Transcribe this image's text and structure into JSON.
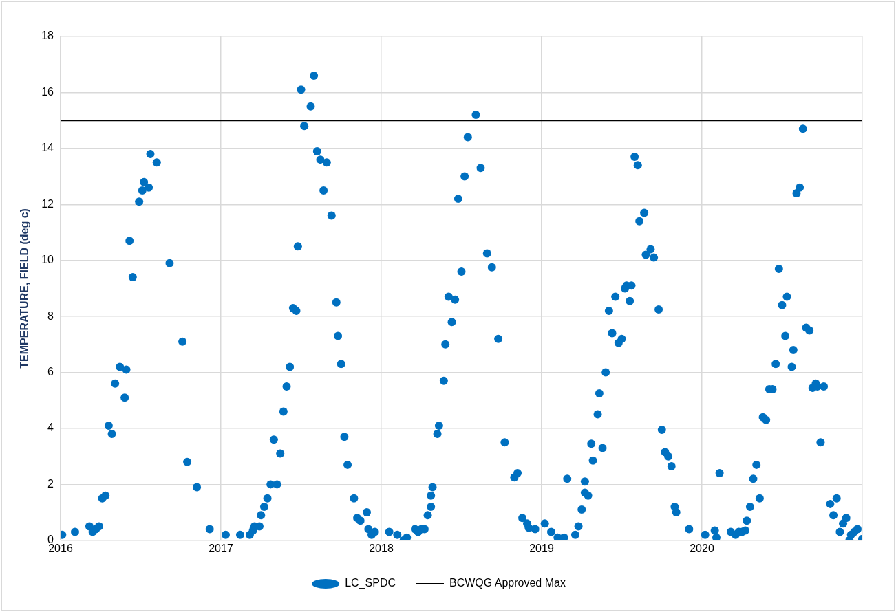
{
  "chart_data": {
    "type": "scatter",
    "ylabel": "TEMPERATURE, FIELD (deg c)",
    "xlim": [
      2016,
      2021
    ],
    "xticks": [
      {
        "value": 2016,
        "label": "2016"
      },
      {
        "value": 2017,
        "label": "2017"
      },
      {
        "value": 2018,
        "label": "2018"
      },
      {
        "value": 2019,
        "label": "2019"
      },
      {
        "value": 2020,
        "label": "2020"
      },
      {
        "value": 2021,
        "label": null
      }
    ],
    "ylim": [
      0,
      18
    ],
    "yticks": [
      0,
      2,
      4,
      6,
      8,
      10,
      12,
      14,
      16,
      18
    ],
    "grid": true,
    "legend": "bottom",
    "series": [
      {
        "name": "LC_SPDC",
        "type": "scatter",
        "marker": "circle",
        "color": "#0070c0",
        "x": [
          2016.01,
          2016.09,
          2016.18,
          2016.2,
          2016.22,
          2016.24,
          2016.26,
          2016.28,
          2016.3,
          2016.32,
          2016.34,
          2016.37,
          2016.4,
          2016.41,
          2016.43,
          2016.45,
          2016.49,
          2016.51,
          2016.52,
          2016.55,
          2016.56,
          2016.6,
          2016.68,
          2016.76,
          2016.79,
          2016.85,
          2016.93,
          2017.03,
          2017.12,
          2017.18,
          2017.2,
          2017.21,
          2017.24,
          2017.25,
          2017.27,
          2017.29,
          2017.31,
          2017.33,
          2017.35,
          2017.37,
          2017.39,
          2017.41,
          2017.43,
          2017.45,
          2017.47,
          2017.48,
          2017.5,
          2017.52,
          2017.56,
          2017.58,
          2017.6,
          2017.62,
          2017.64,
          2017.66,
          2017.69,
          2017.72,
          2017.73,
          2017.75,
          2017.77,
          2017.79,
          2017.83,
          2017.85,
          2017.87,
          2017.91,
          2017.92,
          2017.94,
          2017.96,
          2018.05,
          2018.1,
          2018.14,
          2018.16,
          2018.21,
          2018.23,
          2018.25,
          2018.27,
          2018.29,
          2018.31,
          2018.31,
          2018.32,
          2018.35,
          2018.36,
          2018.39,
          2018.4,
          2018.42,
          2018.44,
          2018.46,
          2018.48,
          2018.5,
          2018.52,
          2018.54,
          2018.59,
          2018.62,
          2018.66,
          2018.69,
          2018.73,
          2018.77,
          2018.83,
          2018.85,
          2018.88,
          2018.91,
          2018.92,
          2018.96,
          2019.02,
          2019.06,
          2019.1,
          2019.14,
          2019.16,
          2019.21,
          2019.23,
          2019.25,
          2019.27,
          2019.27,
          2019.29,
          2019.31,
          2019.32,
          2019.35,
          2019.36,
          2019.38,
          2019.4,
          2019.42,
          2019.44,
          2019.46,
          2019.48,
          2019.5,
          2019.52,
          2019.53,
          2019.55,
          2019.56,
          2019.58,
          2019.6,
          2019.61,
          2019.64,
          2019.65,
          2019.68,
          2019.7,
          2019.73,
          2019.75,
          2019.77,
          2019.79,
          2019.81,
          2019.83,
          2019.84,
          2019.92,
          2020.02,
          2020.08,
          2020.09,
          2020.11,
          2020.18,
          2020.21,
          2020.23,
          2020.25,
          2020.27,
          2020.28,
          2020.3,
          2020.32,
          2020.34,
          2020.36,
          2020.38,
          2020.4,
          2020.42,
          2020.44,
          2020.46,
          2020.48,
          2020.5,
          2020.52,
          2020.53,
          2020.56,
          2020.57,
          2020.59,
          2020.61,
          2020.63,
          2020.65,
          2020.67,
          2020.69,
          2020.71,
          2020.72,
          2020.74,
          2020.76,
          2020.8,
          2020.82,
          2020.84,
          2020.86,
          2020.88,
          2020.9,
          2020.92,
          2020.93,
          2020.95,
          2020.97,
          2021.0
        ],
        "values": [
          0.2,
          0.3,
          0.5,
          0.3,
          0.4,
          0.5,
          1.5,
          1.6,
          4.1,
          3.8,
          5.6,
          6.2,
          5.1,
          6.1,
          10.7,
          9.4,
          12.1,
          12.5,
          12.8,
          12.6,
          13.8,
          13.5,
          9.9,
          7.1,
          2.8,
          1.9,
          0.4,
          0.2,
          0.2,
          0.2,
          0.35,
          0.5,
          0.5,
          0.9,
          1.2,
          1.5,
          2.0,
          3.6,
          2.0,
          3.1,
          4.6,
          5.5,
          6.2,
          8.3,
          8.2,
          10.5,
          16.1,
          14.8,
          15.5,
          16.6,
          13.9,
          13.6,
          12.5,
          13.5,
          11.6,
          8.5,
          7.3,
          6.3,
          3.7,
          2.7,
          1.5,
          0.8,
          0.7,
          1.0,
          0.4,
          0.2,
          0.3,
          0.3,
          0.2,
          0.0,
          0.1,
          0.4,
          0.3,
          0.4,
          0.4,
          0.9,
          1.2,
          1.6,
          1.9,
          3.8,
          4.1,
          5.7,
          7.0,
          8.7,
          7.8,
          8.6,
          12.2,
          9.6,
          13.0,
          14.4,
          15.2,
          13.3,
          10.25,
          9.75,
          7.2,
          3.5,
          2.25,
          2.4,
          0.8,
          0.6,
          0.45,
          0.4,
          0.6,
          0.3,
          0.1,
          0.1,
          2.2,
          0.2,
          0.5,
          1.1,
          1.7,
          2.1,
          1.6,
          3.45,
          2.85,
          4.5,
          5.25,
          3.3,
          6.0,
          8.2,
          7.4,
          8.7,
          7.05,
          7.2,
          9.0,
          9.1,
          8.55,
          9.1,
          13.7,
          13.4,
          11.4,
          11.7,
          10.2,
          10.4,
          10.1,
          8.25,
          3.95,
          3.15,
          3.0,
          2.65,
          1.2,
          1.0,
          0.4,
          0.2,
          0.35,
          0.1,
          2.4,
          0.3,
          0.2,
          0.3,
          0.3,
          0.35,
          0.7,
          1.2,
          2.2,
          2.7,
          1.5,
          4.4,
          4.3,
          5.4,
          5.4,
          6.3,
          9.7,
          8.4,
          7.3,
          8.7,
          6.2,
          6.8,
          12.4,
          12.6,
          14.7,
          7.6,
          7.5,
          5.45,
          5.6,
          5.5,
          3.5,
          5.5,
          1.3,
          0.9,
          1.5,
          0.3,
          0.6,
          0.8,
          0.0,
          0.2,
          0.3,
          0.4,
          0.05
        ]
      },
      {
        "name": "BCWQG Approved Max",
        "type": "line",
        "marker": "none",
        "line_style": "solid",
        "color": "#000000",
        "x": [
          2016,
          2021
        ],
        "values": [
          15,
          15
        ]
      }
    ]
  }
}
